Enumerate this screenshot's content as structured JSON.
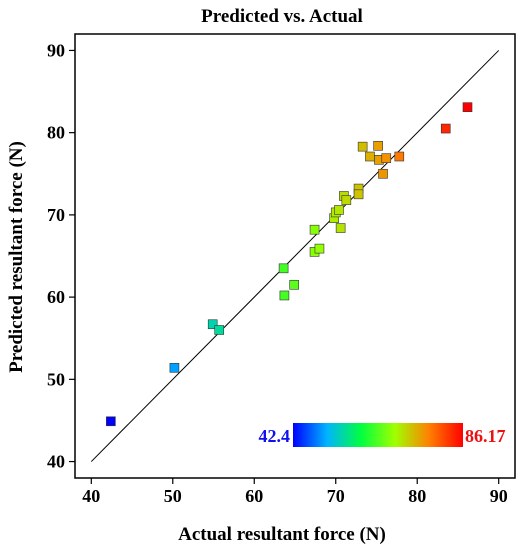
{
  "chart_data": {
    "type": "scatter",
    "title": "Predicted vs. Actual",
    "xlabel": "Actual resultant force (N)",
    "ylabel": "Predicted resultant force (N)",
    "xlim": [
      38,
      92
    ],
    "ylim": [
      38,
      92
    ],
    "x_ticks": [
      40,
      50,
      60,
      70,
      80,
      90
    ],
    "y_ticks": [
      40,
      50,
      60,
      70,
      80,
      90
    ],
    "reference_line": {
      "from": [
        40,
        40
      ],
      "to": [
        90,
        90
      ]
    },
    "colorbar": {
      "min_label": "42.4",
      "max_label": "86.17",
      "min": 42.4,
      "max": 86.17,
      "colors": [
        "#0000ff",
        "#00b4ff",
        "#00ff40",
        "#a0ff00",
        "#ff8000",
        "#ff0000"
      ]
    },
    "points": [
      {
        "x": 42.4,
        "y": 44.9
      },
      {
        "x": 50.2,
        "y": 51.4
      },
      {
        "x": 54.9,
        "y": 56.7
      },
      {
        "x": 55.7,
        "y": 56.0
      },
      {
        "x": 63.6,
        "y": 63.5
      },
      {
        "x": 63.7,
        "y": 60.2
      },
      {
        "x": 64.9,
        "y": 61.5
      },
      {
        "x": 67.4,
        "y": 68.2
      },
      {
        "x": 67.4,
        "y": 65.5
      },
      {
        "x": 68.0,
        "y": 65.9
      },
      {
        "x": 69.8,
        "y": 69.6
      },
      {
        "x": 70.0,
        "y": 70.3
      },
      {
        "x": 70.4,
        "y": 70.6
      },
      {
        "x": 70.6,
        "y": 68.4
      },
      {
        "x": 71.0,
        "y": 72.3
      },
      {
        "x": 71.3,
        "y": 71.8
      },
      {
        "x": 72.8,
        "y": 73.2
      },
      {
        "x": 72.8,
        "y": 72.5
      },
      {
        "x": 73.3,
        "y": 78.3
      },
      {
        "x": 74.2,
        "y": 77.1
      },
      {
        "x": 75.2,
        "y": 78.4
      },
      {
        "x": 75.3,
        "y": 76.7
      },
      {
        "x": 75.8,
        "y": 75.0
      },
      {
        "x": 76.2,
        "y": 76.9
      },
      {
        "x": 77.8,
        "y": 77.1
      },
      {
        "x": 83.5,
        "y": 80.5
      },
      {
        "x": 86.17,
        "y": 83.1
      }
    ]
  }
}
